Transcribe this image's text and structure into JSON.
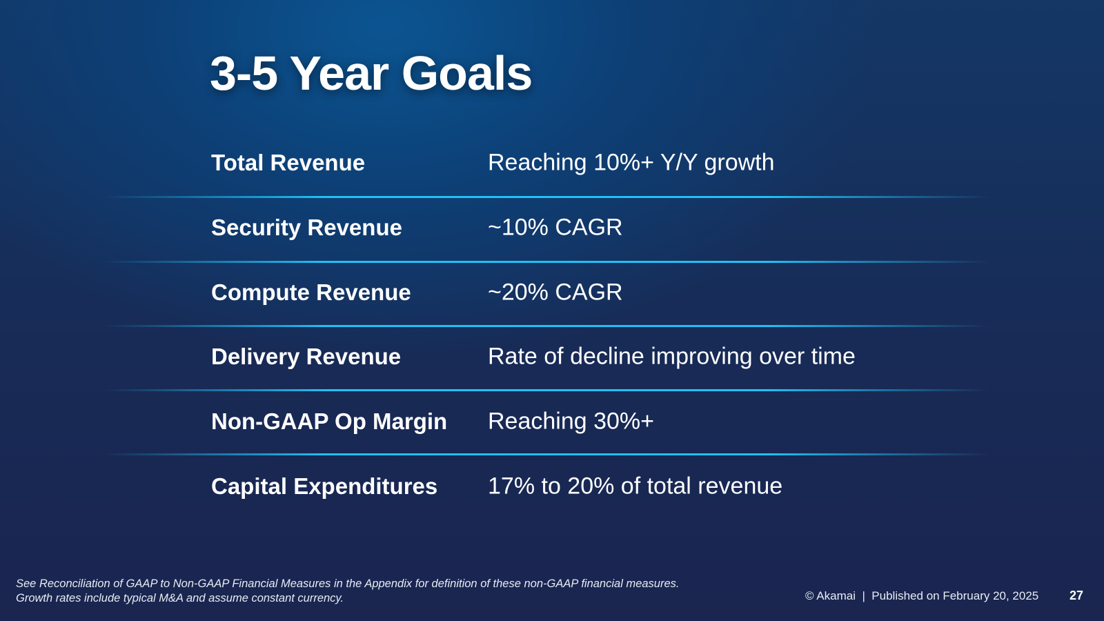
{
  "slide": {
    "title": "3-5 Year Goals",
    "rows": [
      {
        "label": "Total Revenue",
        "value": "Reaching 10%+ Y/Y growth"
      },
      {
        "label": "Security Revenue",
        "value": "~10% CAGR"
      },
      {
        "label": "Compute Revenue",
        "value": "~20% CAGR"
      },
      {
        "label": "Delivery Revenue",
        "value": "Rate of decline improving over time"
      },
      {
        "label": "Non-GAAP Op Margin",
        "value": "Reaching 30%+"
      },
      {
        "label": "Capital Expenditures",
        "value": "17% to 20% of total revenue"
      }
    ],
    "divider_color": "#22c0f4"
  },
  "footer": {
    "note_line1": "See Reconciliation of GAAP to Non-GAAP Financial Measures in the Appendix for definition of these non-GAAP financial measures.",
    "note_line2": "Growth rates include typical M&A and assume constant currency.",
    "copyright": "© Akamai  |  Published on February 20, 2025",
    "page_number": "27"
  }
}
